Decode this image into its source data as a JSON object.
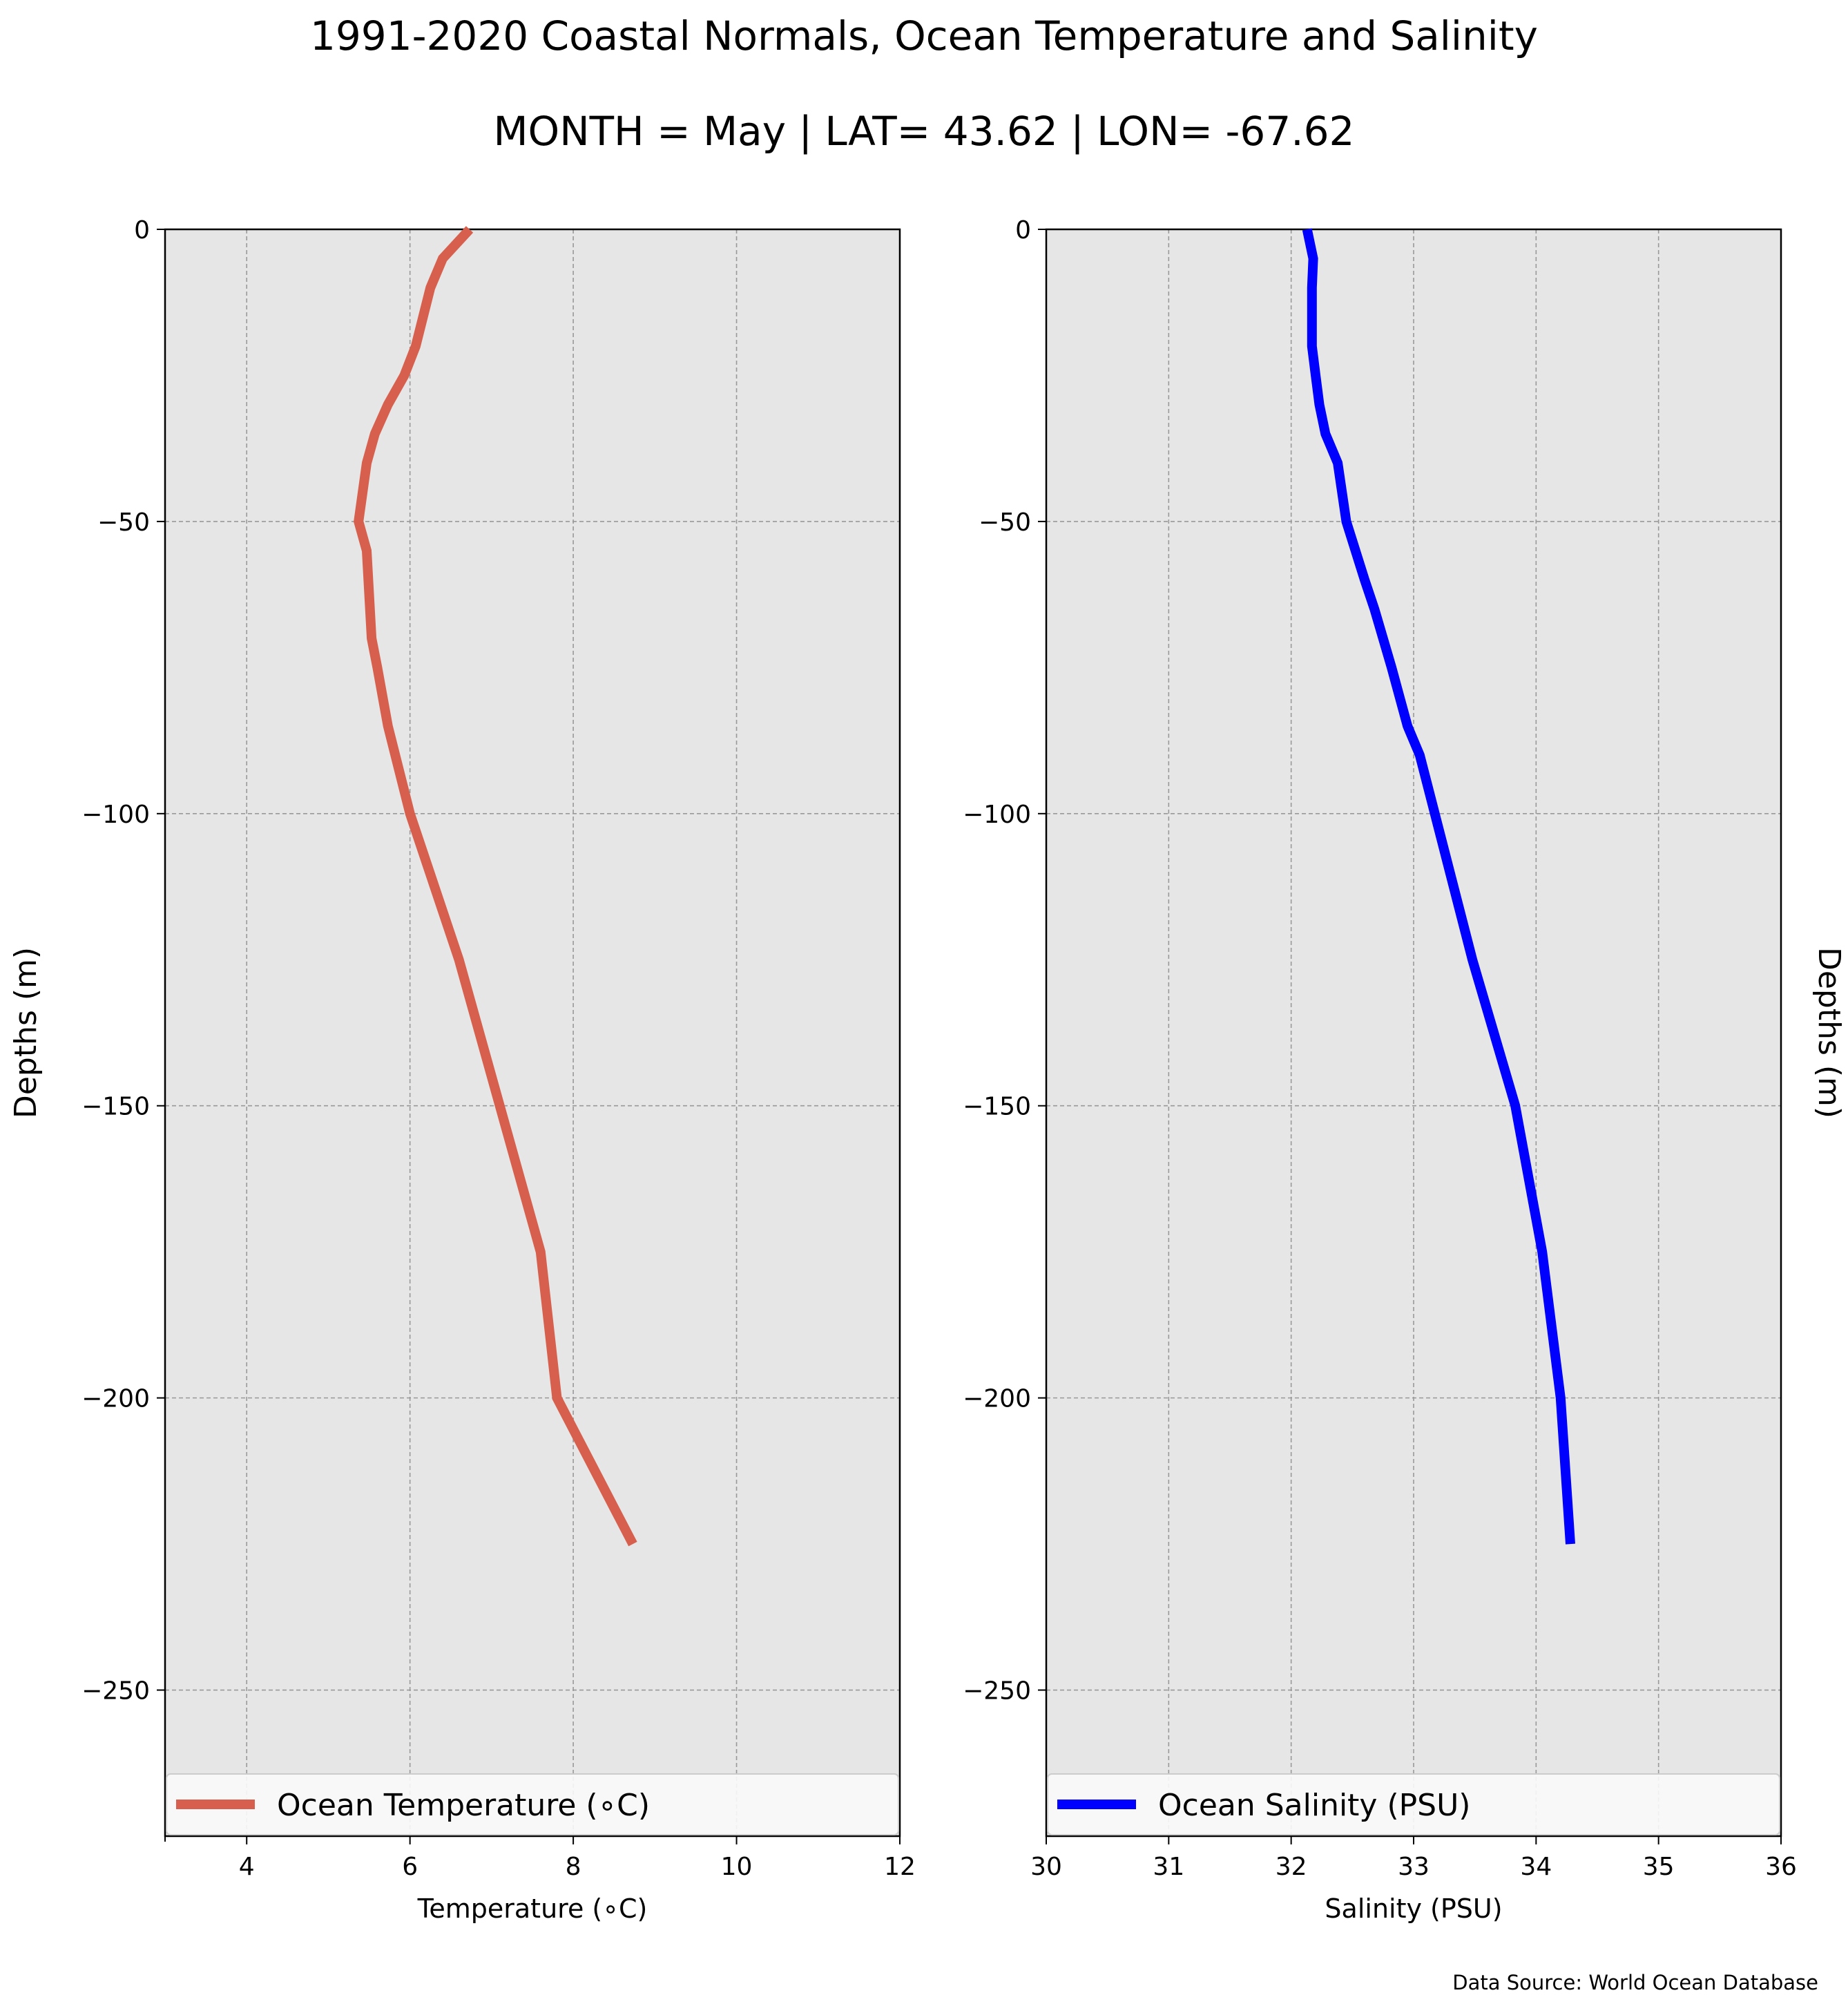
{
  "figure": {
    "title": "1991-2020 Coastal Normals, Ocean Temperature and Salinity",
    "subtitle": "MONTH = May | LAT= 43.62 | LON= -67.62",
    "source_note": "Data Source: World Ocean Database",
    "plot_background": "#e6e6e6",
    "grid_color": "#999999"
  },
  "chart_data": [
    {
      "type": "line",
      "xlabel": "Temperature (∘C)",
      "ylabel": "Depths (m)",
      "xlim": [
        3,
        12
      ],
      "ylim": [
        -275,
        0
      ],
      "xticks": [
        4,
        6,
        8,
        10,
        12
      ],
      "xtick_labels": [
        "4",
        "6",
        "8",
        "10",
        "12"
      ],
      "yticks": [
        0,
        -50,
        -100,
        -150,
        -200,
        -250
      ],
      "ytick_labels": [
        "0",
        "−50",
        "−100",
        "−150",
        "−200",
        "−250"
      ],
      "grid": true,
      "legend_position": "bottom",
      "series": [
        {
          "name": "Ocean Temperature (∘C)",
          "color": "#d6604d",
          "x": [
            6.73,
            6.4,
            6.25,
            6.07,
            5.93,
            5.73,
            5.57,
            5.47,
            5.37,
            5.47,
            5.53,
            5.6,
            5.73,
            6.0,
            6.6,
            7.1,
            7.6,
            7.8,
            8.73
          ],
          "y": [
            0,
            -5,
            -10,
            -20,
            -25,
            -30,
            -35,
            -40,
            -50,
            -55,
            -70,
            -75,
            -85,
            -100,
            -125,
            -150,
            -175,
            -200,
            -225
          ]
        }
      ]
    },
    {
      "type": "line",
      "xlabel": "Salinity (PSU)",
      "ylabel": "Depths (m)",
      "xlim": [
        30,
        36
      ],
      "ylim": [
        -275,
        0
      ],
      "xticks": [
        30,
        31,
        32,
        33,
        34,
        35,
        36
      ],
      "xtick_labels": [
        "30",
        "31",
        "32",
        "33",
        "34",
        "35",
        "36"
      ],
      "yticks": [
        0,
        -50,
        -100,
        -150,
        -200,
        -250
      ],
      "ytick_labels": [
        "0",
        "−50",
        "−100",
        "−150",
        "−200",
        "−250"
      ],
      "grid": true,
      "legend_position": "bottom",
      "series": [
        {
          "name": "Ocean Salinity (PSU)",
          "color": "#0000ff",
          "x": [
            32.13,
            32.18,
            32.17,
            32.17,
            32.2,
            32.23,
            32.28,
            32.38,
            32.45,
            32.6,
            32.68,
            32.82,
            32.95,
            33.05,
            33.48,
            33.83,
            34.05,
            34.2,
            34.28
          ],
          "y": [
            0,
            -5,
            -10,
            -20,
            -25,
            -30,
            -35,
            -40,
            -50,
            -60,
            -65,
            -75,
            -85,
            -90,
            -125,
            -150,
            -175,
            -200,
            -225
          ]
        }
      ]
    }
  ]
}
